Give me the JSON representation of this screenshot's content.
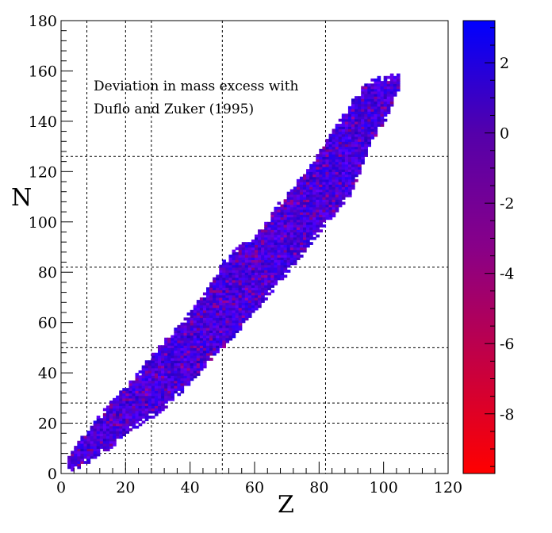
{
  "chart_data": {
    "type": "heatmap",
    "title": "",
    "annotation": [
      "Deviation in mass excess with",
      "Duflo and Zuker (1995)"
    ],
    "xlabel": "Z",
    "ylabel": "N",
    "xlim": [
      0,
      120
    ],
    "ylim": [
      0,
      180
    ],
    "xticks": [
      0,
      20,
      40,
      60,
      80,
      100,
      120
    ],
    "yticks": [
      0,
      20,
      40,
      60,
      80,
      100,
      120,
      140,
      160,
      180
    ],
    "magic_numbers_Z": [
      8,
      20,
      28,
      50,
      82
    ],
    "magic_numbers_N": [
      8,
      20,
      28,
      50,
      82,
      126
    ],
    "grid": "dashed lines at magic numbers",
    "colorbar": {
      "range": [
        -9.7,
        3.2
      ],
      "ticks": [
        2,
        0,
        -2,
        -4,
        -6,
        -8
      ],
      "color_high": "#0000ff",
      "color_low": "#ff0000",
      "placement": "right"
    },
    "band": [
      {
        "Z": 2,
        "N_min": 1,
        "N_max": 6
      },
      {
        "Z": 5,
        "N_min": 2,
        "N_max": 12
      },
      {
        "Z": 10,
        "N_min": 6,
        "N_max": 20
      },
      {
        "Z": 15,
        "N_min": 10,
        "N_max": 28
      },
      {
        "Z": 20,
        "N_min": 16,
        "N_max": 34
      },
      {
        "Z": 25,
        "N_min": 20,
        "N_max": 42
      },
      {
        "Z": 30,
        "N_min": 24,
        "N_max": 50
      },
      {
        "Z": 35,
        "N_min": 30,
        "N_max": 57
      },
      {
        "Z": 40,
        "N_min": 36,
        "N_max": 64
      },
      {
        "Z": 45,
        "N_min": 44,
        "N_max": 73
      },
      {
        "Z": 50,
        "N_min": 50,
        "N_max": 84
      },
      {
        "Z": 55,
        "N_min": 57,
        "N_max": 90
      },
      {
        "Z": 60,
        "N_min": 65,
        "N_max": 95
      },
      {
        "Z": 65,
        "N_min": 72,
        "N_max": 103
      },
      {
        "Z": 70,
        "N_min": 80,
        "N_max": 112
      },
      {
        "Z": 75,
        "N_min": 88,
        "N_max": 118
      },
      {
        "Z": 80,
        "N_min": 96,
        "N_max": 128
      },
      {
        "Z": 85,
        "N_min": 104,
        "N_max": 138
      },
      {
        "Z": 90,
        "N_min": 112,
        "N_max": 148
      },
      {
        "Z": 95,
        "N_min": 130,
        "N_max": 156
      },
      {
        "Z": 100,
        "N_min": 140,
        "N_max": 157
      },
      {
        "Z": 104,
        "N_min": 150,
        "N_max": 158
      }
    ]
  }
}
